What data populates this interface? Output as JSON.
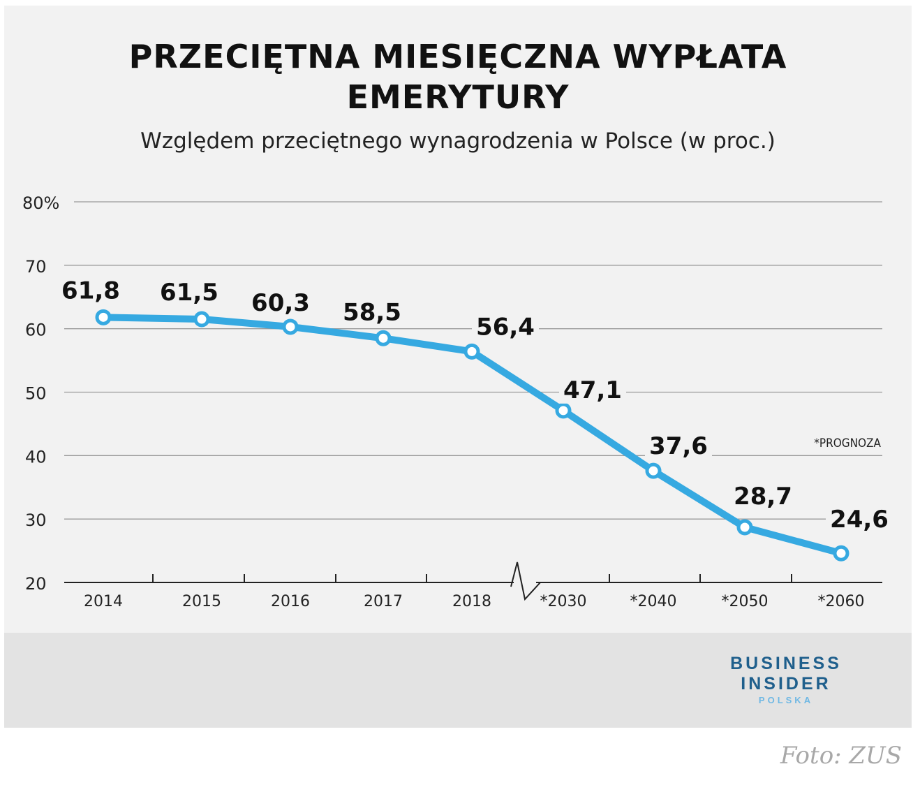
{
  "chart_data": {
    "type": "line",
    "title_lines": [
      "PRZECIĘTNA MIESIĘCZNA WYPŁATA",
      "EMERYTURY"
    ],
    "subtitle": "Względem przeciętnego wynagrodzenia w Polsce (w proc.)",
    "categories": [
      "2014",
      "2015",
      "2016",
      "2017",
      "2018",
      "*2030",
      "*2040",
      "*2050",
      "*2060"
    ],
    "series": [
      {
        "values": [
          61.8,
          61.5,
          60.3,
          58.5,
          56.4,
          47.1,
          37.6,
          28.7,
          24.6
        ],
        "data_labels": [
          "61,8",
          "61,5",
          "60,3",
          "58,5",
          "56,4",
          "47,1",
          "37,6",
          "28,7",
          "24,6"
        ]
      }
    ],
    "y_ticks": [
      {
        "value": 80,
        "label": "80%"
      },
      {
        "value": 70,
        "label": "70"
      },
      {
        "value": 60,
        "label": "60"
      },
      {
        "value": 50,
        "label": "50"
      },
      {
        "value": 40,
        "label": "40"
      },
      {
        "value": 30,
        "label": "30"
      },
      {
        "value": 20,
        "label": "20"
      }
    ],
    "ylim": [
      20,
      80
    ],
    "grid": true,
    "axis_break": "between 2018 and *2030",
    "annotation": "*PROGNOZA",
    "line_color": "#36a9e1"
  },
  "branding": {
    "line1": "BUSINESS",
    "line2": "INSIDER",
    "line3": "POLSKA"
  },
  "credit": "Foto: ZUS"
}
